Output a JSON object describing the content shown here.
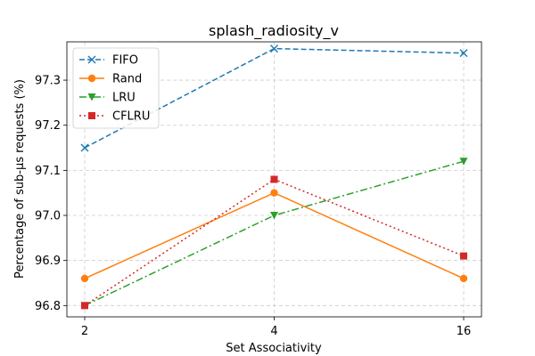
{
  "chart_data": {
    "type": "line",
    "title": "splash_radiosity_v",
    "xlabel": "Set Associativity",
    "ylabel": "Percentage of sub-µs requests (%)",
    "categories": [
      "2",
      "4",
      "16"
    ],
    "ylim": [
      96.775,
      97.385
    ],
    "yticks": [
      "96.8",
      "96.9",
      "97.0",
      "97.1",
      "97.2",
      "97.3"
    ],
    "grid": true,
    "legend_position": "top-left",
    "series": [
      {
        "name": "FIFO",
        "values": [
          97.15,
          97.37,
          97.36
        ],
        "color": "#1f77b4",
        "line_style": "dashed",
        "marker": "x"
      },
      {
        "name": "Rand",
        "values": [
          96.86,
          97.05,
          96.86
        ],
        "color": "#ff7f0e",
        "line_style": "solid",
        "marker": "circle"
      },
      {
        "name": "LRU",
        "values": [
          96.8,
          97.0,
          97.12
        ],
        "color": "#2ca02c",
        "line_style": "dashdot",
        "marker": "triangle-down"
      },
      {
        "name": "CFLRU",
        "values": [
          96.8,
          97.08,
          96.91
        ],
        "color": "#d62728",
        "line_style": "dotted",
        "marker": "square"
      }
    ]
  }
}
